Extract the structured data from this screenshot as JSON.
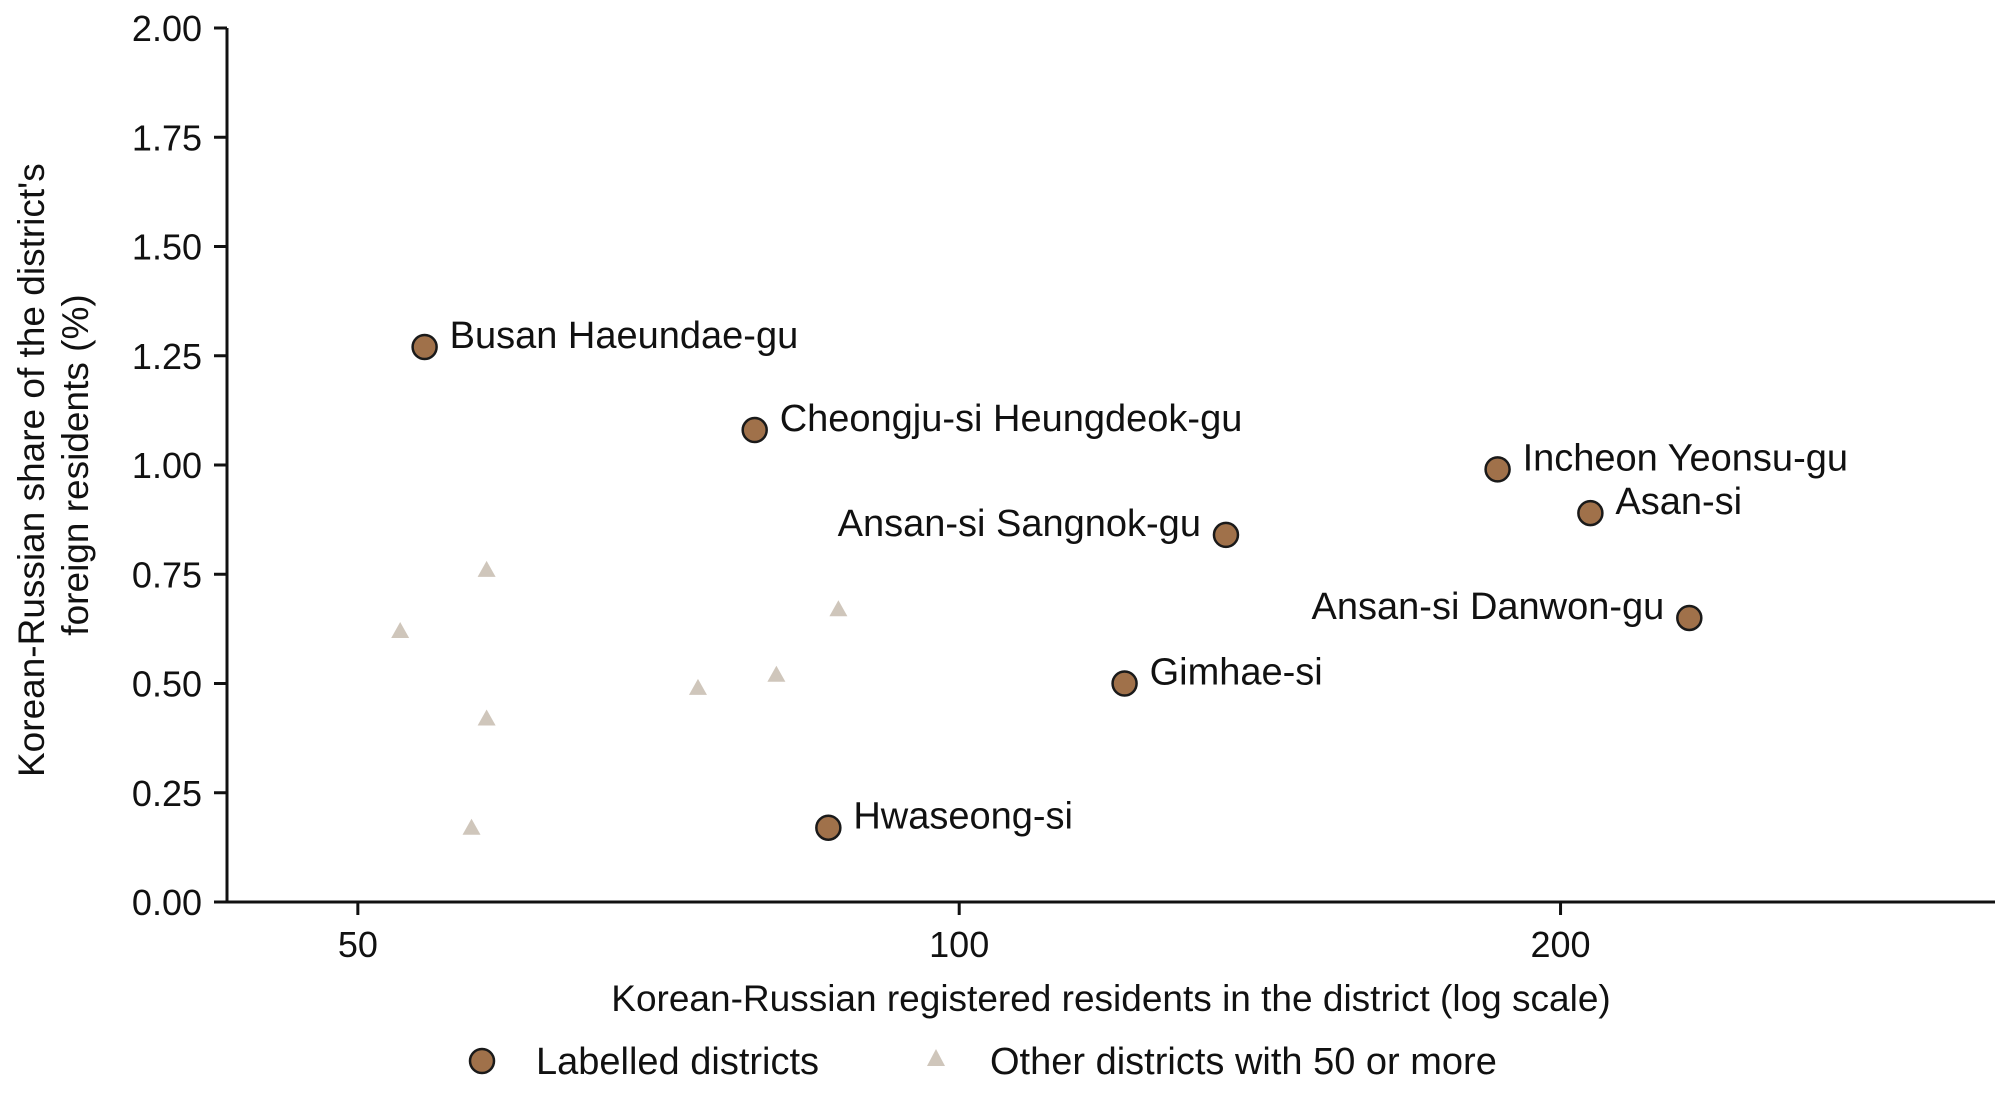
{
  "chart_data": {
    "type": "scatter",
    "xlabel": "Korean-Russian registered residents in the district (log scale)",
    "ylabel_lines": [
      "Korean-Russian share of the district's",
      "foreign residents (%)"
    ],
    "x_scale": "log",
    "xlim": [
      43,
      330
    ],
    "ylim": [
      0,
      2
    ],
    "x_ticks": [
      {
        "value": 50,
        "label": "50"
      },
      {
        "value": 100,
        "label": "100"
      },
      {
        "value": 200,
        "label": "200"
      }
    ],
    "y_ticks": [
      {
        "value": 0,
        "label": "0.00"
      },
      {
        "value": 0.25,
        "label": "0.25"
      },
      {
        "value": 0.5,
        "label": "0.50"
      },
      {
        "value": 0.75,
        "label": "0.75"
      },
      {
        "value": 1.0,
        "label": "1.00"
      },
      {
        "value": 1.25,
        "label": "1.25"
      },
      {
        "value": 1.5,
        "label": "1.50"
      },
      {
        "value": 1.75,
        "label": "1.75"
      },
      {
        "value": 2.0,
        "label": "2.00"
      }
    ],
    "grid": false,
    "legend": {
      "placement": "bottom-center",
      "entries": [
        "Labelled districts",
        "Other districts with 50 or more"
      ]
    },
    "colors": {
      "labelled": "#a0714a",
      "labelled_edge": "#1a1a1a",
      "other": "#cfc6bb",
      "axis": "#111111"
    },
    "series": [
      {
        "name": "Labelled districts",
        "marker": "circle",
        "points": [
          {
            "label": "Busan Haeundae-gu",
            "x": 54,
            "y": 1.27,
            "label_side": "right"
          },
          {
            "label": "Cheongju-si Heungdeok-gu",
            "x": 79,
            "y": 1.08,
            "label_side": "right"
          },
          {
            "label": "Incheon Yeonsu-gu",
            "x": 186,
            "y": 0.99,
            "label_side": "right"
          },
          {
            "label": "Asan-si",
            "x": 207,
            "y": 0.89,
            "label_side": "right"
          },
          {
            "label": "Ansan-si Sangnok-gu",
            "x": 136,
            "y": 0.84,
            "label_side": "left"
          },
          {
            "label": "Ansan-si Danwon-gu",
            "x": 232,
            "y": 0.65,
            "label_side": "left"
          },
          {
            "label": "Gimhae-si",
            "x": 121,
            "y": 0.5,
            "label_side": "right"
          },
          {
            "label": "Hwaseong-si",
            "x": 86,
            "y": 0.17,
            "label_side": "right"
          }
        ]
      },
      {
        "name": "Other districts with 50 or more",
        "marker": "triangle",
        "points": [
          {
            "x": 52.5,
            "y": 0.62
          },
          {
            "x": 58,
            "y": 0.76
          },
          {
            "x": 58,
            "y": 0.42
          },
          {
            "x": 57,
            "y": 0.17
          },
          {
            "x": 74,
            "y": 0.49
          },
          {
            "x": 81,
            "y": 0.52
          },
          {
            "x": 87,
            "y": 0.67
          }
        ]
      }
    ]
  }
}
